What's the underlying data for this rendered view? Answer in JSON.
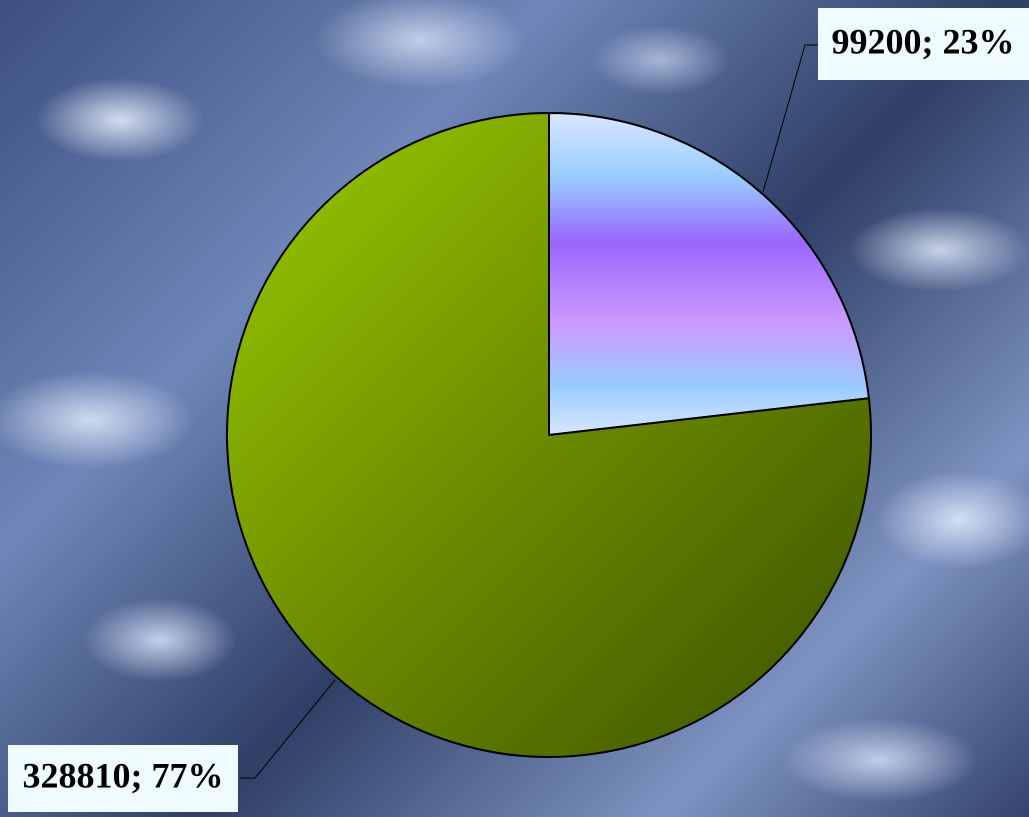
{
  "chart_data": {
    "type": "pie",
    "values": [
      99200,
      328810
    ],
    "value_labels": [
      "99200; 23%",
      "328810; 77%"
    ],
    "colors": [
      "#9966ff",
      "#6b8a00"
    ]
  }
}
